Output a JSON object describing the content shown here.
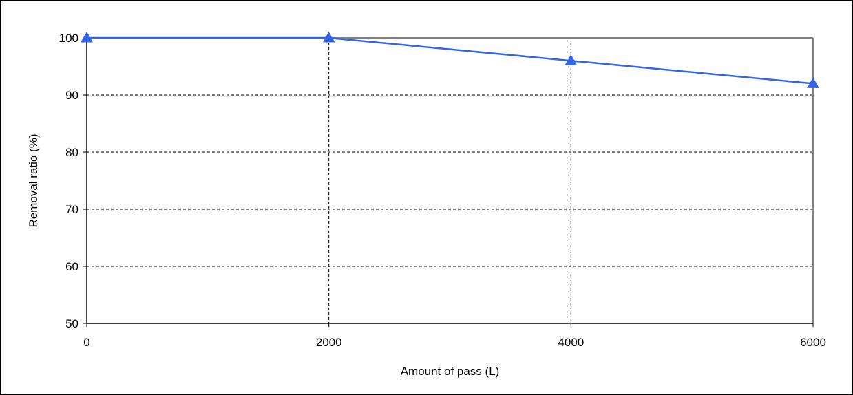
{
  "chart_data": {
    "type": "line",
    "title": "",
    "xlabel": "Amount of pass (L)",
    "ylabel": "Removal ratio (%)",
    "xlim": [
      0,
      6000
    ],
    "ylim": [
      50,
      100
    ],
    "xticks": [
      0,
      2000,
      4000,
      6000
    ],
    "yticks": [
      50,
      60,
      70,
      80,
      90,
      100
    ],
    "xtick_labels": [
      "0",
      "2000",
      "4000",
      "6000"
    ],
    "ytick_labels": [
      "50",
      "60",
      "70",
      "80",
      "90",
      "100"
    ],
    "grid": true,
    "grid_style": "dashed",
    "legend": "none",
    "marker": "triangle",
    "series": [
      {
        "color": "#3366e6",
        "x": [
          0,
          2000,
          4000,
          6000
        ],
        "values": [
          100,
          100,
          96,
          92
        ]
      }
    ]
  }
}
